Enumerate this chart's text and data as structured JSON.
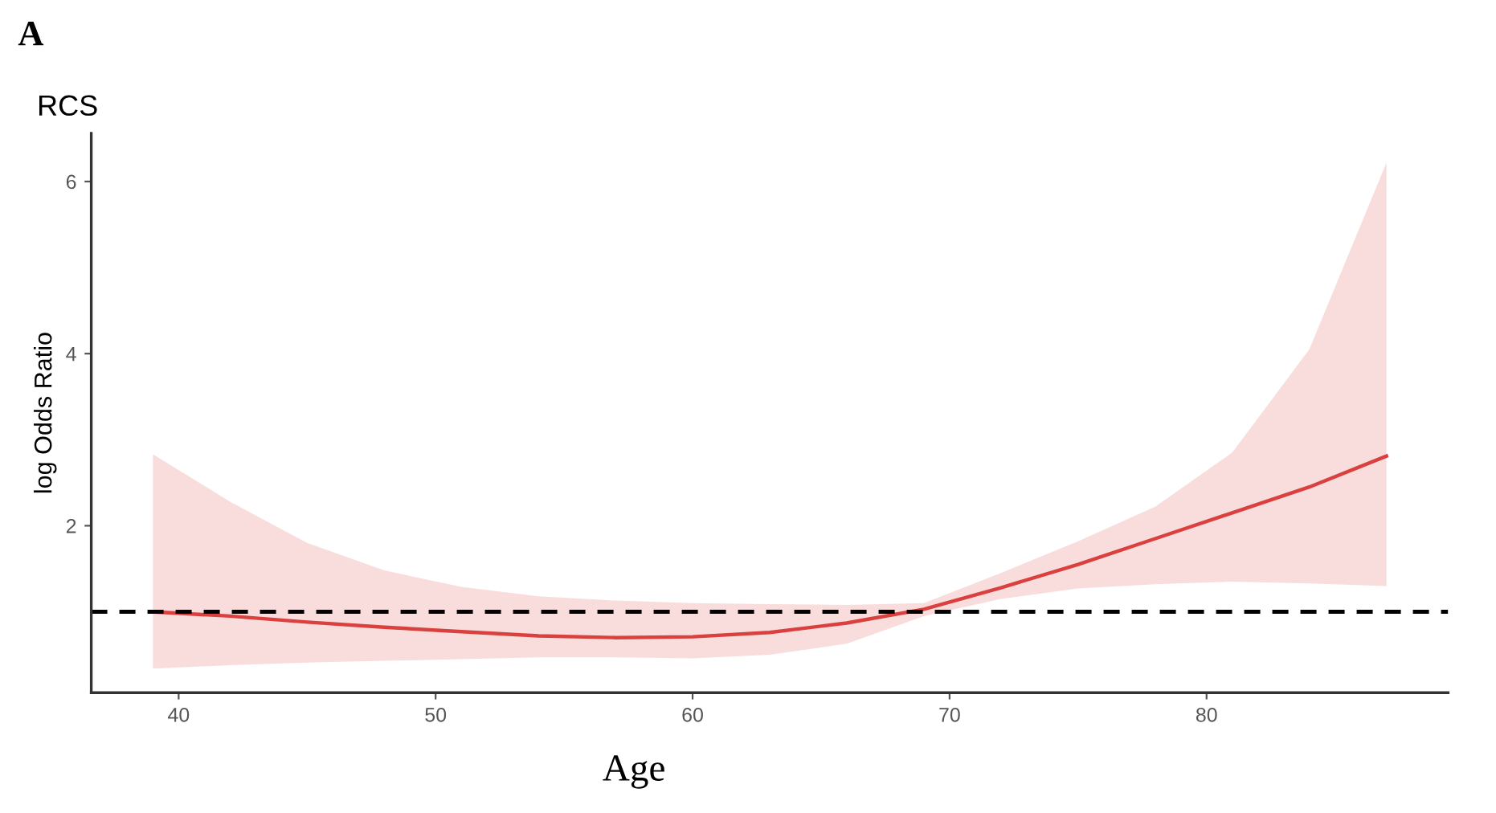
{
  "chart_data": {
    "type": "line",
    "title": "RCS",
    "xlabel": "Age",
    "ylabel": "log Odds Ratio",
    "annotations": [
      "A"
    ],
    "x": [
      39,
      42,
      45,
      48,
      51,
      54,
      57,
      60,
      63,
      66,
      69,
      72,
      75,
      78,
      81,
      84,
      87
    ],
    "series": [
      {
        "color": "#d9403e",
        "values": [
          1.0,
          0.95,
          0.88,
          0.82,
          0.77,
          0.72,
          0.7,
          0.71,
          0.76,
          0.87,
          1.03,
          1.28,
          1.55,
          1.85,
          2.15,
          2.45,
          2.81
        ],
        "lower": [
          0.34,
          0.38,
          0.41,
          0.43,
          0.45,
          0.47,
          0.47,
          0.46,
          0.5,
          0.63,
          0.95,
          1.15,
          1.27,
          1.32,
          1.35,
          1.33,
          1.3
        ],
        "upper": [
          2.83,
          2.28,
          1.8,
          1.48,
          1.29,
          1.18,
          1.13,
          1.1,
          1.09,
          1.08,
          1.1,
          1.45,
          1.82,
          2.22,
          2.85,
          4.05,
          6.22
        ]
      }
    ],
    "xlim": [
      36.6,
      89.4
    ],
    "ylim": [
      0.06,
      6.56
    ],
    "xticks": [
      40,
      50,
      60,
      70,
      80
    ],
    "yticks": [
      2,
      4,
      6
    ],
    "ref_lines": [
      {
        "axis": "y",
        "value": 1,
        "color": "#000000",
        "line_style": "dashed"
      }
    ],
    "grid": false,
    "marker": "none",
    "line_style": "solid"
  }
}
